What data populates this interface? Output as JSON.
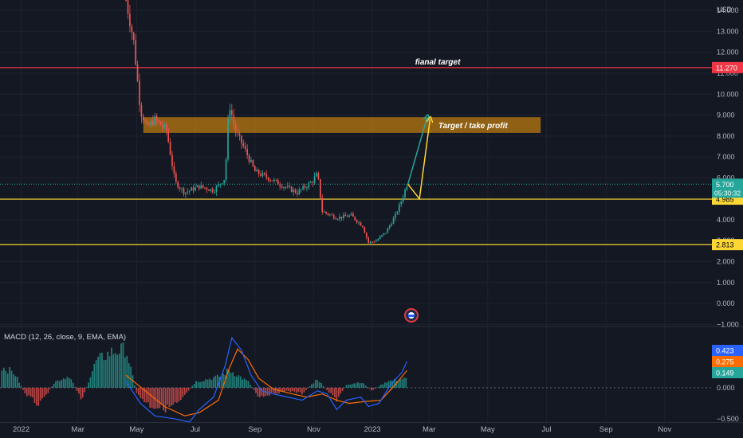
{
  "currency": "USD",
  "colors": {
    "background": "#141823",
    "grid": "#1e2230",
    "axis_text": "#b2b5be",
    "up": "#26a69a",
    "down": "#ef5350",
    "red_line": "#f23645",
    "yellow_line": "#fdd835",
    "zone_fill": "#f59e0b",
    "macd_line": "#2962ff",
    "signal_line": "#ff6d00",
    "hist_up": "#26a69a",
    "hist_down": "#ef5350"
  },
  "chart_data": [
    {
      "type": "candlestick",
      "y_ticks": [
        -1,
        0,
        1,
        2,
        3,
        4,
        5,
        6,
        7,
        8,
        9,
        10,
        11,
        12,
        13,
        14
      ],
      "y_tick_labels": [
        "−1.000",
        "0.000",
        "1.000",
        "2.000",
        "3.000",
        "4.000",
        "5.000",
        "6.000",
        "7.000",
        "8.000",
        "9.000",
        "10.000",
        "11.000",
        "12.000",
        "13.000",
        "14.000"
      ],
      "ylim": [
        -1.1,
        14.5
      ],
      "x_ticks": [
        {
          "label": "2022",
          "date": "2022-01-01"
        },
        {
          "label": "Mar",
          "date": "2022-03-01"
        },
        {
          "label": "May",
          "date": "2022-05-01"
        },
        {
          "label": "Jul",
          "date": "2022-07-01"
        },
        {
          "label": "Sep",
          "date": "2022-09-01"
        },
        {
          "label": "Nov",
          "date": "2022-11-01"
        },
        {
          "label": "2023",
          "date": "2023-01-01"
        },
        {
          "label": "Mar",
          "date": "2023-03-01"
        },
        {
          "label": "May",
          "date": "2023-05-01"
        },
        {
          "label": "Jul",
          "date": "2023-07-01"
        },
        {
          "label": "Sep",
          "date": "2023-09-01"
        },
        {
          "label": "Nov",
          "date": "2023-11-01"
        }
      ],
      "xlim": [
        "2021-12-10",
        "2023-12-20"
      ],
      "price_path": [
        [
          "2022-04-20",
          14.5
        ],
        [
          "2022-04-28",
          12.5
        ],
        [
          "2022-05-05",
          9.2
        ],
        [
          "2022-05-12",
          8.4
        ],
        [
          "2022-05-20",
          8.8
        ],
        [
          "2022-06-01",
          8.3
        ],
        [
          "2022-06-10",
          5.8
        ],
        [
          "2022-06-20",
          5.3
        ],
        [
          "2022-07-05",
          5.6
        ],
        [
          "2022-07-20",
          5.4
        ],
        [
          "2022-08-01",
          6.0
        ],
        [
          "2022-08-05",
          9.6
        ],
        [
          "2022-08-12",
          8.2
        ],
        [
          "2022-08-20",
          7.5
        ],
        [
          "2022-09-01",
          6.3
        ],
        [
          "2022-09-15",
          6.0
        ],
        [
          "2022-10-01",
          5.6
        ],
        [
          "2022-10-15",
          5.3
        ],
        [
          "2022-10-30",
          5.8
        ],
        [
          "2022-11-05",
          6.2
        ],
        [
          "2022-11-10",
          4.4
        ],
        [
          "2022-11-25",
          4.1
        ],
        [
          "2022-12-10",
          4.2
        ],
        [
          "2022-12-22",
          3.7
        ],
        [
          "2022-12-28",
          2.9
        ],
        [
          "2023-01-05",
          3.0
        ],
        [
          "2023-01-15",
          3.4
        ],
        [
          "2023-01-25",
          4.2
        ],
        [
          "2023-02-01",
          5.0
        ],
        [
          "2023-02-06",
          5.7
        ]
      ],
      "horizontal_lines": [
        {
          "value": 11.27,
          "label": "11.270",
          "color": "red"
        },
        {
          "value": 4.985,
          "label": "4.985",
          "color": "yellow"
        },
        {
          "value": 2.813,
          "label": "2.813",
          "color": "yellow"
        }
      ],
      "current_price": {
        "value": 5.7,
        "label": "5.700",
        "countdown": "05:30:32"
      },
      "zone": {
        "from": 8.15,
        "to": 8.9,
        "x_start": "2022-05-08",
        "x_end": "2023-06-25",
        "label": "Target / take profit"
      },
      "annotations": [
        {
          "text": "fianal target",
          "date": "2023-03-10",
          "value": 11.27
        }
      ],
      "arrows": [
        {
          "color": "green",
          "points": [
            [
              "2023-02-07",
              5.7
            ],
            [
              "2023-02-27",
              8.9
            ]
          ]
        },
        {
          "color": "yellow",
          "points": [
            [
              "2023-02-07",
              5.7
            ],
            [
              "2023-02-19",
              5.0
            ],
            [
              "2023-03-02",
              8.8
            ]
          ]
        }
      ]
    },
    {
      "type": "line+bar",
      "title": "MACD (12, 26, close, 9, EMA, EMA)",
      "y_ticks": [
        0,
        -0.5
      ],
      "y_tick_labels": [
        "0.000",
        "−0.500"
      ],
      "ylim": [
        -0.55,
        0.98
      ],
      "series": [
        {
          "name": "MACD",
          "value_label": "0.423"
        },
        {
          "name": "Signal",
          "value_label": "0.275"
        },
        {
          "name": "Histogram",
          "value_label": "0.149"
        }
      ],
      "macd_path": [
        [
          "2022-04-20",
          0.1
        ],
        [
          "2022-05-05",
          -0.25
        ],
        [
          "2022-05-20",
          -0.45
        ],
        [
          "2022-06-10",
          -0.5
        ],
        [
          "2022-06-25",
          -0.55
        ],
        [
          "2022-07-05",
          -0.35
        ],
        [
          "2022-07-20",
          -0.15
        ],
        [
          "2022-08-01",
          0.35
        ],
        [
          "2022-08-08",
          0.8
        ],
        [
          "2022-08-18",
          0.6
        ],
        [
          "2022-08-28",
          0.2
        ],
        [
          "2022-09-08",
          -0.05
        ],
        [
          "2022-09-20",
          -0.1
        ],
        [
          "2022-10-05",
          -0.15
        ],
        [
          "2022-10-20",
          -0.2
        ],
        [
          "2022-11-05",
          -0.05
        ],
        [
          "2022-11-15",
          -0.1
        ],
        [
          "2022-11-25",
          -0.35
        ],
        [
          "2022-12-05",
          -0.2
        ],
        [
          "2022-12-20",
          -0.15
        ],
        [
          "2022-12-28",
          -0.3
        ],
        [
          "2023-01-08",
          -0.25
        ],
        [
          "2023-01-20",
          0.05
        ],
        [
          "2023-02-01",
          0.25
        ],
        [
          "2023-02-06",
          0.423
        ]
      ],
      "signal_path": [
        [
          "2022-04-20",
          0.2
        ],
        [
          "2022-05-10",
          -0.05
        ],
        [
          "2022-05-30",
          -0.3
        ],
        [
          "2022-06-20",
          -0.45
        ],
        [
          "2022-07-05",
          -0.4
        ],
        [
          "2022-07-25",
          -0.2
        ],
        [
          "2022-08-05",
          0.3
        ],
        [
          "2022-08-14",
          0.62
        ],
        [
          "2022-08-25",
          0.45
        ],
        [
          "2022-09-05",
          0.15
        ],
        [
          "2022-09-20",
          -0.02
        ],
        [
          "2022-10-10",
          -0.1
        ],
        [
          "2022-10-25",
          -0.15
        ],
        [
          "2022-11-10",
          -0.1
        ],
        [
          "2022-11-25",
          -0.2
        ],
        [
          "2022-12-08",
          -0.25
        ],
        [
          "2022-12-25",
          -0.22
        ],
        [
          "2023-01-10",
          -0.2
        ],
        [
          "2023-01-25",
          0.05
        ],
        [
          "2023-02-06",
          0.275
        ]
      ],
      "histogram_path": [
        [
          "2021-12-12",
          0.35
        ],
        [
          "2021-12-25",
          0.25
        ],
        [
          "2022-01-05",
          -0.1
        ],
        [
          "2022-01-20",
          -0.3
        ],
        [
          "2022-02-05",
          0.1
        ],
        [
          "2022-02-20",
          0.2
        ],
        [
          "2022-03-05",
          -0.2
        ],
        [
          "2022-03-20",
          0.45
        ],
        [
          "2022-04-05",
          0.6
        ],
        [
          "2022-04-20",
          0.65
        ],
        [
          "2022-05-01",
          -0.1
        ],
        [
          "2022-05-15",
          -0.3
        ],
        [
          "2022-06-01",
          -0.35
        ],
        [
          "2022-06-15",
          -0.25
        ],
        [
          "2022-07-01",
          0.1
        ],
        [
          "2022-07-15",
          0.15
        ],
        [
          "2022-07-28",
          0.2
        ],
        [
          "2022-08-05",
          0.3
        ],
        [
          "2022-08-15",
          0.2
        ],
        [
          "2022-08-25",
          0.1
        ],
        [
          "2022-09-05",
          -0.15
        ],
        [
          "2022-09-20",
          -0.1
        ],
        [
          "2022-10-05",
          -0.05
        ],
        [
          "2022-10-20",
          -0.1
        ],
        [
          "2022-11-05",
          0.15
        ],
        [
          "2022-11-15",
          -0.05
        ],
        [
          "2022-11-25",
          -0.2
        ],
        [
          "2022-12-05",
          0.05
        ],
        [
          "2022-12-20",
          0.1
        ],
        [
          "2023-01-01",
          -0.05
        ],
        [
          "2023-01-15",
          0.1
        ],
        [
          "2023-02-01",
          0.15
        ],
        [
          "2023-02-06",
          0.149
        ]
      ]
    }
  ]
}
